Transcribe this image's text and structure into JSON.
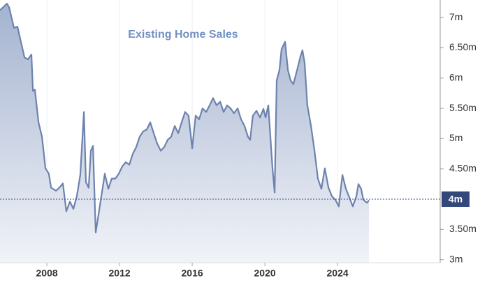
{
  "chart_data": {
    "type": "area",
    "title": "Existing Home Sales",
    "color": "#6d83ad",
    "grid": true,
    "xlim": [
      2005.42,
      2029.65
    ],
    "xticks": [
      2008,
      2012,
      2016,
      2020,
      2024
    ],
    "ylim": [
      2.95,
      7.29
    ],
    "yticks": [
      {
        "value": 3,
        "label": "3m"
      },
      {
        "value": 3.5,
        "label": "3.50m"
      },
      {
        "value": 4.5,
        "label": "4.50m"
      },
      {
        "value": 5,
        "label": "5m"
      },
      {
        "value": 5.5,
        "label": "5.50m"
      },
      {
        "value": 6,
        "label": "6m"
      },
      {
        "value": 6.5,
        "label": "6.50m"
      },
      {
        "value": 7,
        "label": "7m"
      }
    ],
    "last_value": {
      "value": 4,
      "label": "4m"
    },
    "x": [
      2005.42,
      2005.8,
      2005.92,
      2006.19,
      2006.38,
      2006.57,
      2006.77,
      2006.96,
      2007.15,
      2007.23,
      2007.34,
      2007.54,
      2007.73,
      2007.92,
      2008.11,
      2008.23,
      2008.5,
      2008.69,
      2008.88,
      2009.07,
      2009.27,
      2009.46,
      2009.65,
      2009.84,
      2010.04,
      2010.15,
      2010.3,
      2010.42,
      2010.54,
      2010.69,
      2010.88,
      2011.11,
      2011.19,
      2011.38,
      2011.57,
      2011.77,
      2011.96,
      2012.15,
      2012.34,
      2012.54,
      2012.73,
      2012.92,
      2013.11,
      2013.3,
      2013.5,
      2013.69,
      2013.88,
      2014.07,
      2014.27,
      2014.46,
      2014.65,
      2014.84,
      2015.04,
      2015.23,
      2015.42,
      2015.61,
      2015.8,
      2016.0,
      2016.19,
      2016.38,
      2016.57,
      2016.77,
      2016.96,
      2017.15,
      2017.34,
      2017.54,
      2017.73,
      2017.92,
      2018.11,
      2018.3,
      2018.5,
      2018.69,
      2018.88,
      2019.07,
      2019.19,
      2019.34,
      2019.54,
      2019.73,
      2019.92,
      2020.04,
      2020.19,
      2020.42,
      2020.54,
      2020.65,
      2020.8,
      2020.92,
      2021.11,
      2021.27,
      2021.42,
      2021.57,
      2021.77,
      2021.96,
      2022.07,
      2022.19,
      2022.34,
      2022.54,
      2022.73,
      2022.92,
      2023.11,
      2023.3,
      2023.5,
      2023.69,
      2023.88,
      2024.07,
      2024.27,
      2024.46,
      2024.65,
      2024.84,
      2025.04,
      2025.15,
      2025.3,
      2025.42,
      2025.61,
      2025.73
    ],
    "values": [
      7.12,
      7.23,
      7.17,
      6.83,
      6.85,
      6.6,
      6.34,
      6.31,
      6.39,
      5.79,
      5.81,
      5.27,
      5.03,
      4.51,
      4.42,
      4.19,
      4.14,
      4.19,
      4.26,
      3.8,
      3.96,
      3.84,
      4.05,
      4.4,
      5.44,
      4.28,
      4.19,
      4.8,
      4.88,
      3.45,
      3.82,
      4.26,
      4.42,
      4.17,
      4.34,
      4.34,
      4.42,
      4.54,
      4.61,
      4.57,
      4.75,
      4.86,
      5.03,
      5.12,
      5.15,
      5.27,
      5.09,
      4.92,
      4.8,
      4.86,
      4.98,
      5.03,
      5.21,
      5.09,
      5.27,
      5.44,
      5.38,
      4.84,
      5.38,
      5.32,
      5.5,
      5.44,
      5.55,
      5.67,
      5.55,
      5.61,
      5.44,
      5.55,
      5.5,
      5.42,
      5.5,
      5.32,
      5.21,
      5.03,
      4.98,
      5.38,
      5.46,
      5.35,
      5.49,
      5.35,
      5.55,
      4.51,
      4.11,
      5.96,
      6.13,
      6.48,
      6.6,
      6.13,
      5.96,
      5.9,
      6.13,
      6.36,
      6.46,
      6.25,
      5.55,
      5.21,
      4.8,
      4.34,
      4.17,
      4.51,
      4.19,
      4.05,
      3.99,
      3.88,
      4.4,
      4.17,
      4.03,
      3.88,
      4.05,
      4.25,
      4.17,
      3.99,
      3.94,
      3.98
    ]
  }
}
